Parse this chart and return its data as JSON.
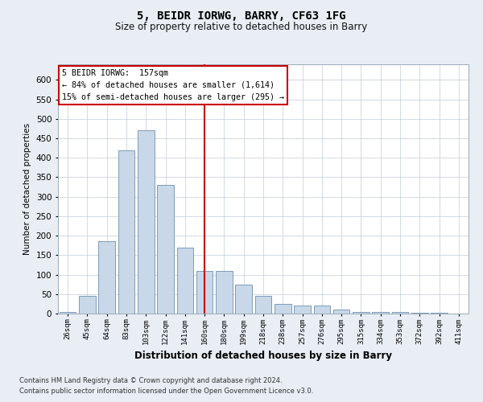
{
  "title": "5, BEIDR IORWG, BARRY, CF63 1FG",
  "subtitle": "Size of property relative to detached houses in Barry",
  "xlabel": "Distribution of detached houses by size in Barry",
  "ylabel": "Number of detached properties",
  "bar_labels": [
    "26sqm",
    "45sqm",
    "64sqm",
    "83sqm",
    "103sqm",
    "122sqm",
    "141sqm",
    "160sqm",
    "180sqm",
    "199sqm",
    "218sqm",
    "238sqm",
    "257sqm",
    "276sqm",
    "295sqm",
    "315sqm",
    "334sqm",
    "353sqm",
    "372sqm",
    "392sqm",
    "411sqm"
  ],
  "bar_values": [
    5,
    45,
    185,
    420,
    470,
    330,
    170,
    110,
    110,
    75,
    45,
    25,
    20,
    20,
    10,
    5,
    5,
    5,
    3,
    3,
    1
  ],
  "bar_color": "#c8d8e8",
  "bar_edgecolor": "#7090b0",
  "marker_index": 7,
  "marker_color": "#cc0000",
  "annotation_line1": "5 BEIDR IORWG:  157sqm",
  "annotation_line2": "← 84% of detached houses are smaller (1,614)",
  "annotation_line3": "15% of semi-detached houses are larger (295) →",
  "annotation_box_color": "#ffffff",
  "annotation_box_edgecolor": "#cc0000",
  "ylim": [
    0,
    640
  ],
  "yticks": [
    0,
    50,
    100,
    150,
    200,
    250,
    300,
    350,
    400,
    450,
    500,
    550,
    600
  ],
  "footnote1": "Contains HM Land Registry data © Crown copyright and database right 2024.",
  "footnote2": "Contains public sector information licensed under the Open Government Licence v3.0.",
  "background_color": "#e8eef4",
  "plot_background": "#ffffff",
  "grid_color": "#c0ccd8",
  "fig_width": 6.0,
  "fig_height": 5.0,
  "dpi": 100
}
